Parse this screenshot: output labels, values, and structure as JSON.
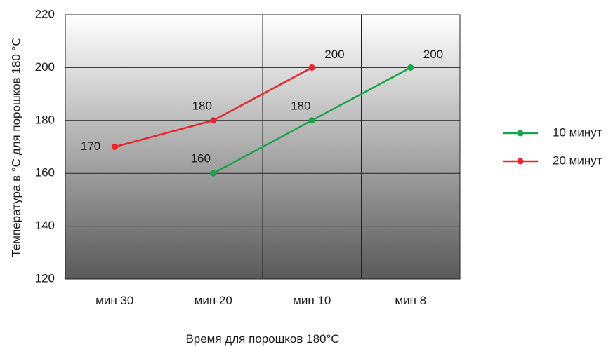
{
  "chart_data": {
    "type": "line",
    "categories": [
      "мин 30",
      "мин 20",
      "мин 10",
      "мин 8"
    ],
    "series": [
      {
        "name": "10 минут",
        "color": "#1aa34a",
        "values": [
          null,
          160,
          180,
          200
        ]
      },
      {
        "name": "20 минут",
        "color": "#e8262d",
        "values": [
          170,
          180,
          200,
          null
        ]
      }
    ],
    "xlabel": "Время для порошков 180°C",
    "ylabel": "Температура в °C для порошков 180 °C",
    "ylim": [
      120,
      220
    ],
    "yticks": [
      120,
      140,
      160,
      180,
      200,
      220
    ],
    "grid": true,
    "legend_position": "right",
    "data_labels": true,
    "background": {
      "gradient_top": "#ffffff",
      "gradient_bottom": "#5a5a5a"
    }
  }
}
